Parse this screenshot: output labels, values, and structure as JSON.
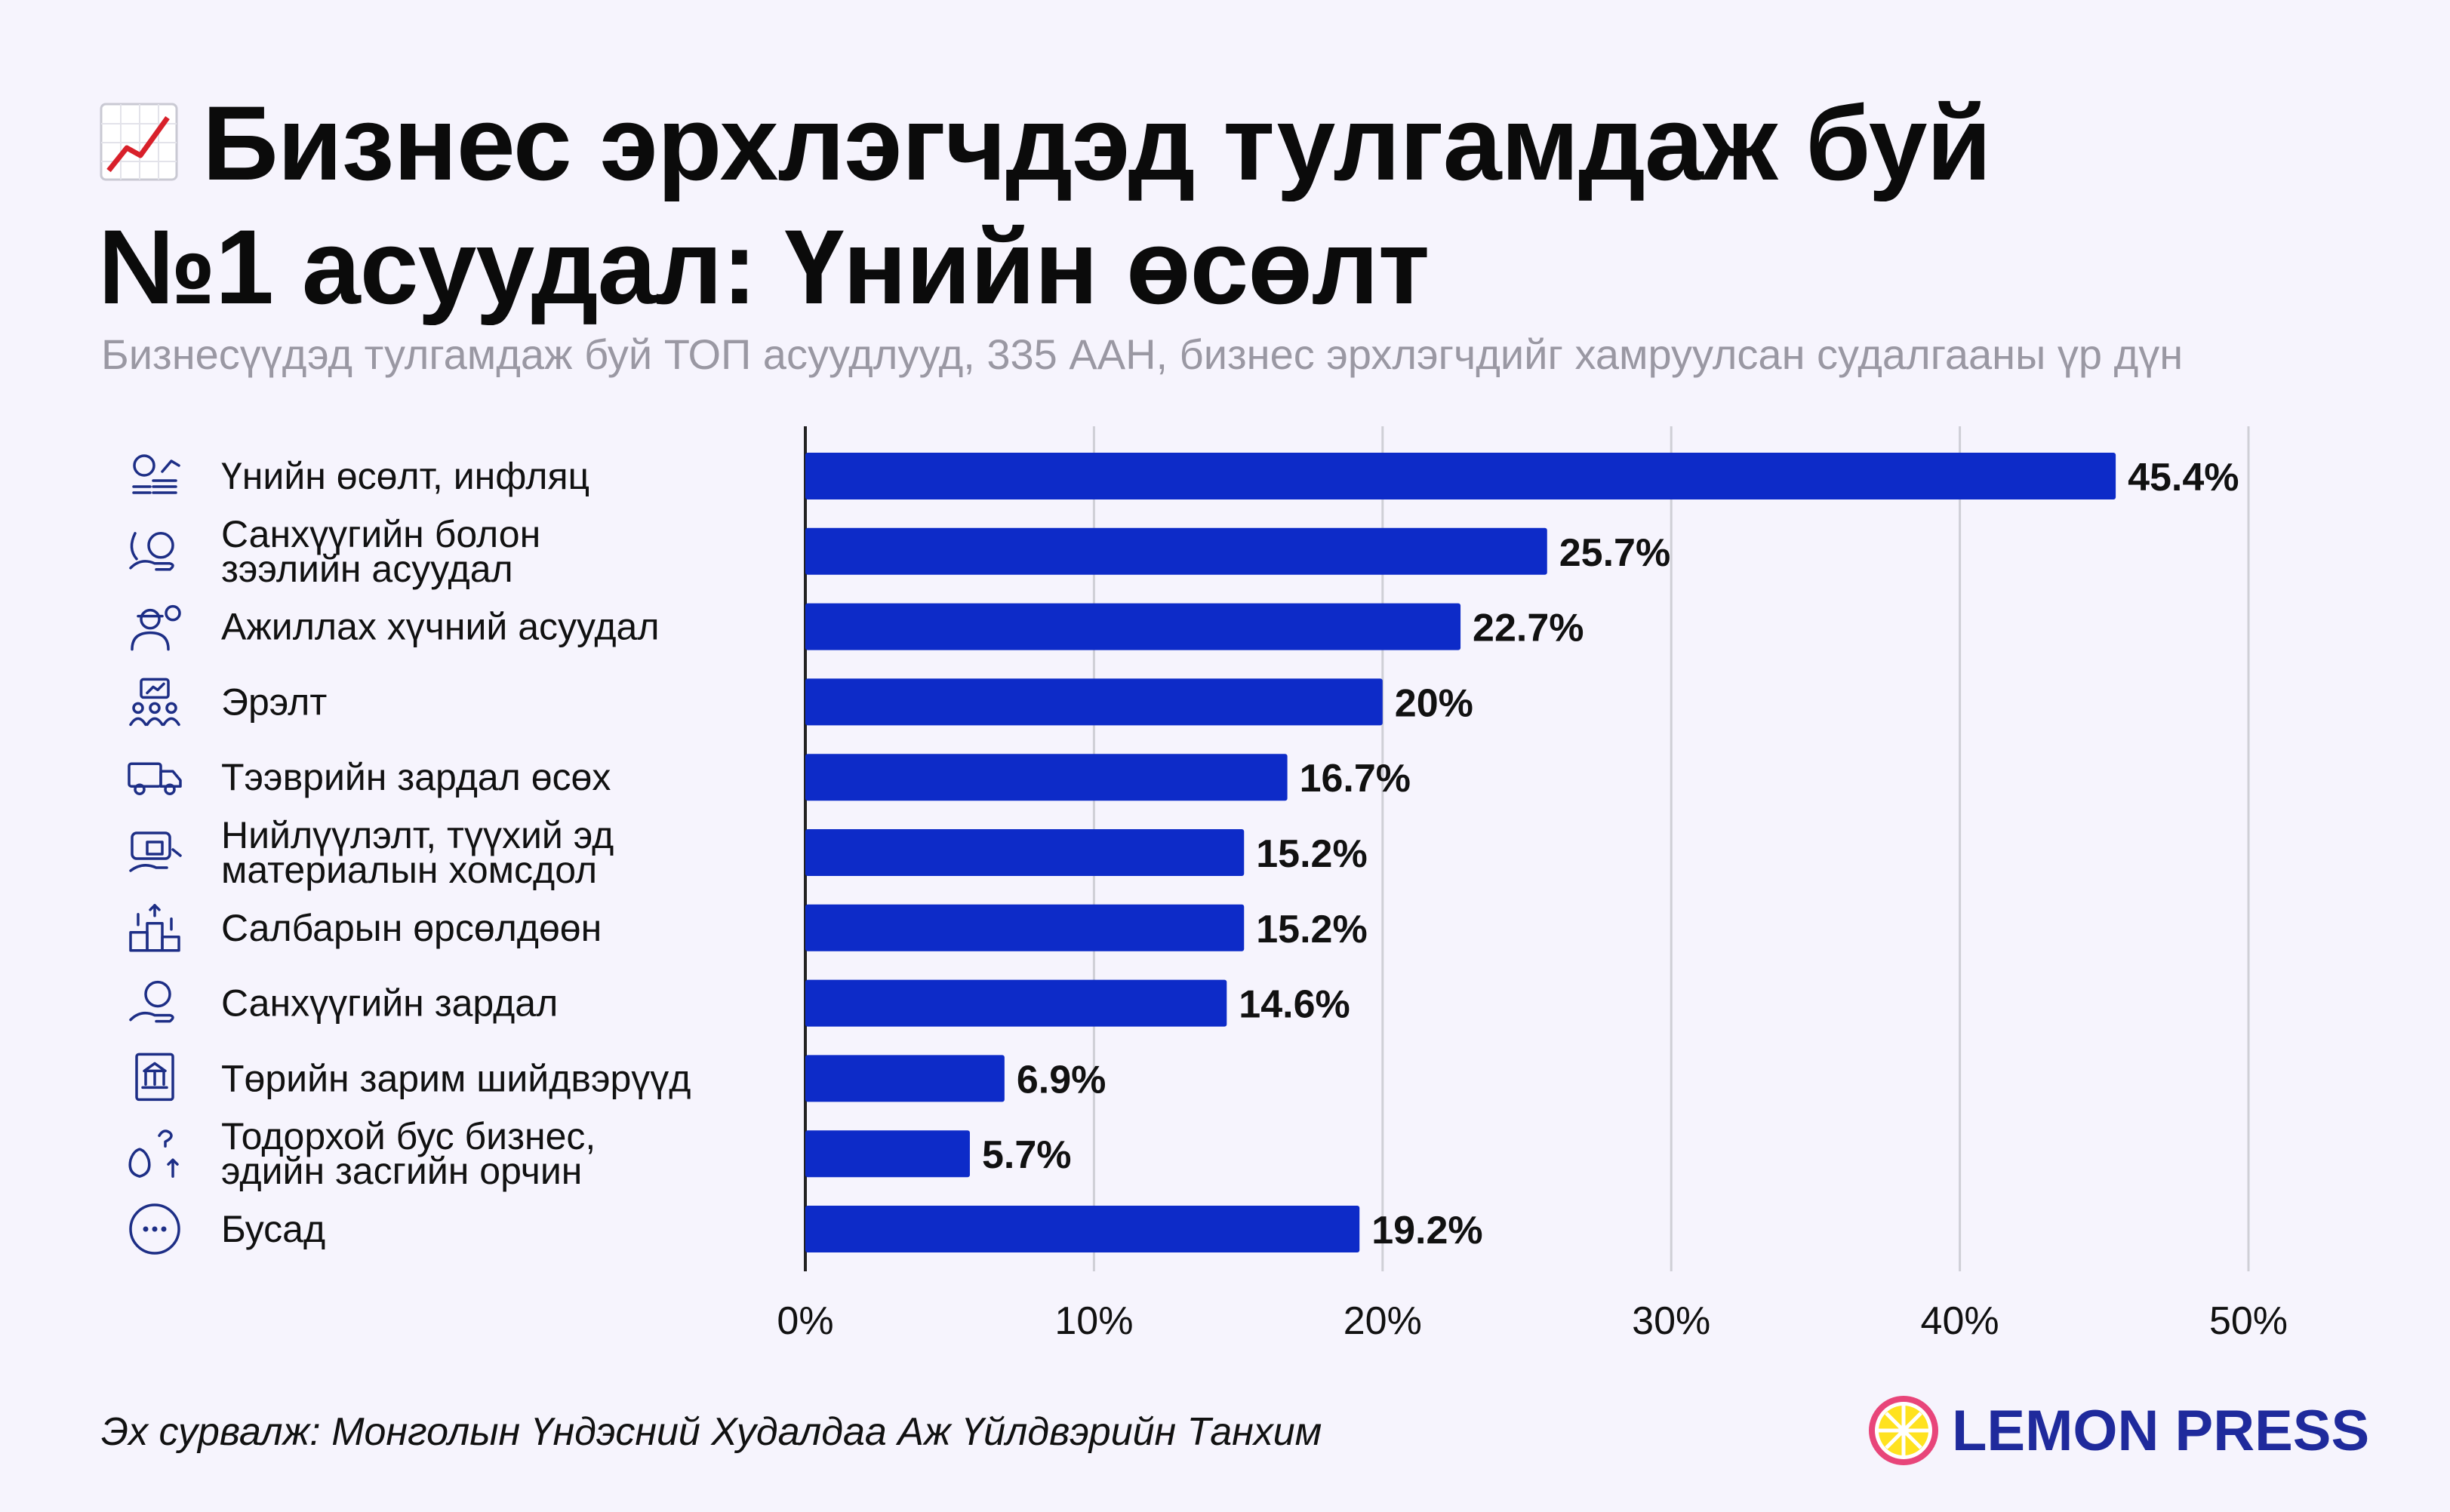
{
  "header": {
    "title_line1": "Бизнес эрхлэгчдэд тулгамдаж буй",
    "title_line2": "№1 асуудал: Үнийн өсөлт",
    "subtitle": "Бизнесүүдэд тулгамдаж буй ТОП асуудлууд, 335 ААН, бизнес эрхлэгчдийг хамруулсан судалгааны үр дүн"
  },
  "chart_data": {
    "type": "bar",
    "orientation": "horizontal",
    "title": "Бизнес эрхлэгчдэд тулгамдаж буй №1 асуудал: Үнийн өсөлт",
    "subtitle": "Бизнесүүдэд тулгамдаж буй ТОП асуудлууд, 335 ААН, бизнес эрхлэгчдийг хамруулсан судалгааны үр дүн",
    "xlabel": "",
    "ylabel": "",
    "xlim": [
      0,
      50
    ],
    "grid": true,
    "ticks": [
      "0%",
      "10%",
      "20%",
      "30%",
      "40%",
      "50%"
    ],
    "tick_values": [
      0,
      10,
      20,
      30,
      40,
      50
    ],
    "bar_color": "#0d2bc8",
    "categories": [
      {
        "lines": [
          "Үнийн өсөлт, инфляц"
        ],
        "icon": "coins-growth-icon"
      },
      {
        "lines": [
          "Санхүүгийн болон",
          "зээлийн асуудал"
        ],
        "icon": "hand-money-icon"
      },
      {
        "lines": [
          "Ажиллах хүчний асуудал"
        ],
        "icon": "worker-gear-icon"
      },
      {
        "lines": [
          "Эрэлт"
        ],
        "icon": "demand-people-icon"
      },
      {
        "lines": [
          "Тээврийн зардал өсөх"
        ],
        "icon": "truck-icon"
      },
      {
        "lines": [
          "Нийлүүлэлт, түүхий эд",
          "материалын хомсдол"
        ],
        "icon": "supply-box-icon"
      },
      {
        "lines": [
          "Салбарын өрсөлдөөн"
        ],
        "icon": "podium-icon"
      },
      {
        "lines": [
          "Санхүүгийн зардал"
        ],
        "icon": "hand-coin-icon"
      },
      {
        "lines": [
          "Төрийн зарим шийдвэрүүд"
        ],
        "icon": "government-document-icon"
      },
      {
        "lines": [
          "Тодорхой бус бизнес,",
          "эдийн засгийн орчин"
        ],
        "icon": "uncertain-money-icon"
      },
      {
        "lines": [
          "Бусад"
        ],
        "icon": "more-dots-icon"
      }
    ],
    "values": [
      45.4,
      25.7,
      22.7,
      20,
      16.7,
      15.2,
      15.2,
      14.6,
      6.9,
      5.7,
      19.2
    ],
    "value_labels": [
      "45.4%",
      "25.7%",
      "22.7%",
      "20%",
      "16.7%",
      "15.2%",
      "15.2%",
      "14.6%",
      "6.9%",
      "5.7%",
      "19.2%"
    ]
  },
  "footer": {
    "source": "Эх сурвалж: Монголын Үндэсний Худалдаа Аж Үйлдвэрийн Танхим",
    "logo_text": "LEMON PRESS",
    "logo_color": "#1f2a9c"
  }
}
